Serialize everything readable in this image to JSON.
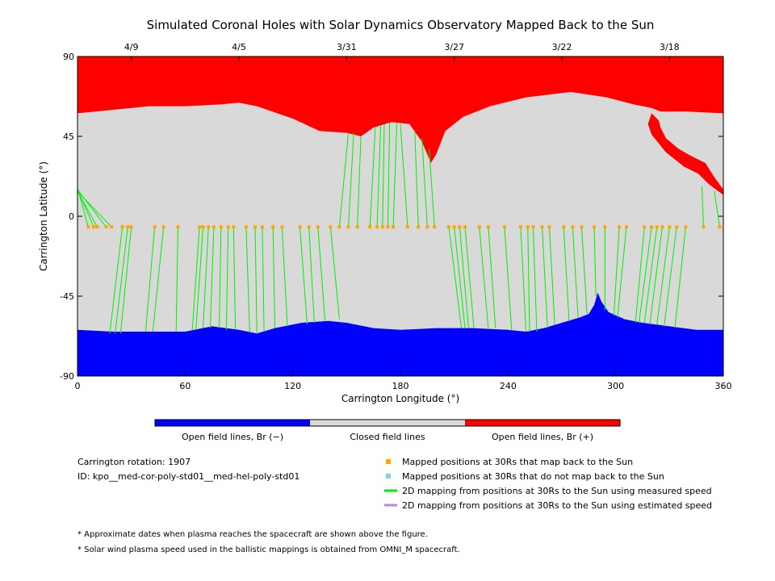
{
  "chart_data": {
    "type": "map",
    "title": "Simulated Coronal Holes with Solar Dynamics Observatory Mapped Back to the Sun",
    "xlabel": "Carrington Longitude (°)",
    "ylabel": "Carrington Latitude (°)",
    "xlim": [
      0,
      360
    ],
    "ylim": [
      -90,
      90
    ],
    "x_ticks": [
      0,
      60,
      120,
      180,
      240,
      300,
      360
    ],
    "y_ticks": [
      90,
      45,
      0,
      -45,
      -90
    ],
    "top_date_ticks": [
      {
        "label": "4/9",
        "lon": 30
      },
      {
        "label": "4/5",
        "lon": 90
      },
      {
        "label": "3/31",
        "lon": 150
      },
      {
        "label": "3/27",
        "lon": 210
      },
      {
        "label": "3/22",
        "lon": 270
      },
      {
        "label": "3/18",
        "lon": 330
      }
    ],
    "colors": {
      "open_negative": "#0000ff",
      "closed": "#d9d9d9",
      "open_positive": "#ff0000",
      "mapped_point": "#ffa500",
      "unmapped_point": "#87ceeb",
      "measured_line": "#00ee00",
      "estimated_line": "#b68be8"
    },
    "north_boundary": [
      [
        0,
        58
      ],
      [
        20,
        60
      ],
      [
        40,
        62
      ],
      [
        60,
        62
      ],
      [
        80,
        63
      ],
      [
        90,
        64
      ],
      [
        100,
        62
      ],
      [
        120,
        55
      ],
      [
        135,
        48
      ],
      [
        150,
        47
      ],
      [
        158,
        45
      ],
      [
        165,
        50
      ],
      [
        175,
        53
      ],
      [
        185,
        52
      ],
      [
        192,
        42
      ],
      [
        197,
        30
      ],
      [
        200,
        35
      ],
      [
        205,
        48
      ],
      [
        215,
        56
      ],
      [
        230,
        62
      ],
      [
        250,
        67
      ],
      [
        275,
        70
      ],
      [
        295,
        67
      ],
      [
        310,
        63
      ],
      [
        320,
        61
      ],
      [
        325,
        59
      ],
      [
        340,
        59
      ],
      [
        360,
        58
      ]
    ],
    "north_red_lobe": [
      [
        320,
        58
      ],
      [
        324,
        54
      ],
      [
        325,
        50
      ],
      [
        328,
        44
      ],
      [
        335,
        38
      ],
      [
        342,
        34
      ],
      [
        350,
        30
      ],
      [
        355,
        22
      ],
      [
        360,
        15
      ],
      [
        360,
        12
      ],
      [
        352,
        18
      ],
      [
        346,
        24
      ],
      [
        338,
        28
      ],
      [
        328,
        36
      ],
      [
        320,
        46
      ],
      [
        318,
        52
      ]
    ],
    "south_boundary": [
      [
        0,
        -64
      ],
      [
        20,
        -65
      ],
      [
        40,
        -65
      ],
      [
        60,
        -65
      ],
      [
        75,
        -62
      ],
      [
        90,
        -64
      ],
      [
        100,
        -66
      ],
      [
        110,
        -63
      ],
      [
        125,
        -60
      ],
      [
        140,
        -59
      ],
      [
        150,
        -60
      ],
      [
        165,
        -63
      ],
      [
        180,
        -64
      ],
      [
        200,
        -63
      ],
      [
        220,
        -63
      ],
      [
        240,
        -64
      ],
      [
        250,
        -65
      ],
      [
        260,
        -63
      ],
      [
        270,
        -60
      ],
      [
        280,
        -57
      ],
      [
        285,
        -55
      ],
      [
        288,
        -50
      ],
      [
        290,
        -43
      ],
      [
        292,
        -48
      ],
      [
        296,
        -54
      ],
      [
        305,
        -58
      ],
      [
        315,
        -60
      ],
      [
        330,
        -62
      ],
      [
        345,
        -64
      ],
      [
        360,
        -64
      ]
    ],
    "mapped_points": [
      {
        "lon": 6,
        "lat": -6,
        "sun_lon": 0,
        "sun_lat": 16
      },
      {
        "lon": 9,
        "lat": -6,
        "sun_lon": 0,
        "sun_lat": 15
      },
      {
        "lon": 11,
        "lat": -6,
        "sun_lon": 0,
        "sun_lat": 14
      },
      {
        "lon": 16,
        "lat": -6,
        "sun_lon": 0,
        "sun_lat": 15
      },
      {
        "lon": 19,
        "lat": -6,
        "sun_lon": 0,
        "sun_lat": 14
      },
      {
        "lon": 25,
        "lat": -6,
        "sun_lon": 18,
        "sun_lat": -66
      },
      {
        "lon": 28,
        "lat": -6,
        "sun_lon": 21,
        "sun_lat": -66
      },
      {
        "lon": 30,
        "lat": -6,
        "sun_lon": 24,
        "sun_lat": -66
      },
      {
        "lon": 43,
        "lat": -6,
        "sun_lon": 38,
        "sun_lat": -65
      },
      {
        "lon": 48,
        "lat": -6,
        "sun_lon": 42,
        "sun_lat": -65
      },
      {
        "lon": 56,
        "lat": -6,
        "sun_lon": 55,
        "sun_lat": -65
      },
      {
        "lon": 68,
        "lat": -6,
        "sun_lon": 64,
        "sun_lat": -64
      },
      {
        "lon": 70,
        "lat": -6,
        "sun_lon": 66,
        "sun_lat": -64
      },
      {
        "lon": 73,
        "lat": -6,
        "sun_lon": 70,
        "sun_lat": -63
      },
      {
        "lon": 76,
        "lat": -6,
        "sun_lon": 74,
        "sun_lat": -63
      },
      {
        "lon": 80,
        "lat": -6,
        "sun_lon": 79,
        "sun_lat": -63
      },
      {
        "lon": 84,
        "lat": -6,
        "sun_lon": 83,
        "sun_lat": -64
      },
      {
        "lon": 87,
        "lat": -6,
        "sun_lon": 88,
        "sun_lat": -64
      },
      {
        "lon": 94,
        "lat": -6,
        "sun_lon": 96,
        "sun_lat": -65
      },
      {
        "lon": 99,
        "lat": -6,
        "sun_lon": 100,
        "sun_lat": -66
      },
      {
        "lon": 103,
        "lat": -6,
        "sun_lon": 104,
        "sun_lat": -65
      },
      {
        "lon": 109,
        "lat": -6,
        "sun_lon": 110,
        "sun_lat": -63
      },
      {
        "lon": 114,
        "lat": -6,
        "sun_lon": 117,
        "sun_lat": -62
      },
      {
        "lon": 124,
        "lat": -6,
        "sun_lon": 128,
        "sun_lat": -61
      },
      {
        "lon": 129,
        "lat": -6,
        "sun_lon": 132,
        "sun_lat": -60
      },
      {
        "lon": 134,
        "lat": -6,
        "sun_lon": 138,
        "sun_lat": -59
      },
      {
        "lon": 141,
        "lat": -6,
        "sun_lon": 146,
        "sun_lat": -58
      },
      {
        "lon": 146,
        "lat": -6,
        "sun_lon": 151,
        "sun_lat": 47
      },
      {
        "lon": 151,
        "lat": -6,
        "sun_lon": 154,
        "sun_lat": 47
      },
      {
        "lon": 156,
        "lat": -6,
        "sun_lon": 158,
        "sun_lat": 45
      },
      {
        "lon": 163,
        "lat": -6,
        "sun_lon": 166,
        "sun_lat": 50
      },
      {
        "lon": 167,
        "lat": -6,
        "sun_lon": 169,
        "sun_lat": 51
      },
      {
        "lon": 170,
        "lat": -6,
        "sun_lon": 171,
        "sun_lat": 52
      },
      {
        "lon": 173,
        "lat": -6,
        "sun_lon": 174,
        "sun_lat": 53
      },
      {
        "lon": 176,
        "lat": -6,
        "sun_lon": 178,
        "sun_lat": 53
      },
      {
        "lon": 184,
        "lat": -6,
        "sun_lon": 180,
        "sun_lat": 52
      },
      {
        "lon": 190,
        "lat": -6,
        "sun_lon": 188,
        "sun_lat": 48
      },
      {
        "lon": 195,
        "lat": -6,
        "sun_lon": 192,
        "sun_lat": 44
      },
      {
        "lon": 199,
        "lat": -6,
        "sun_lon": 196,
        "sun_lat": 38
      },
      {
        "lon": 207,
        "lat": -6,
        "sun_lon": 214,
        "sun_lat": -63
      },
      {
        "lon": 210,
        "lat": -6,
        "sun_lon": 216,
        "sun_lat": -63
      },
      {
        "lon": 213,
        "lat": -6,
        "sun_lon": 218,
        "sun_lat": -63
      },
      {
        "lon": 216,
        "lat": -6,
        "sun_lon": 221,
        "sun_lat": -63
      },
      {
        "lon": 224,
        "lat": -6,
        "sun_lon": 229,
        "sun_lat": -63
      },
      {
        "lon": 229,
        "lat": -6,
        "sun_lon": 233,
        "sun_lat": -63
      },
      {
        "lon": 238,
        "lat": -6,
        "sun_lon": 242,
        "sun_lat": -64
      },
      {
        "lon": 247,
        "lat": -6,
        "sun_lon": 250,
        "sun_lat": -65
      },
      {
        "lon": 251,
        "lat": -6,
        "sun_lon": 252,
        "sun_lat": -65
      },
      {
        "lon": 254,
        "lat": -6,
        "sun_lon": 256,
        "sun_lat": -65
      },
      {
        "lon": 259,
        "lat": -6,
        "sun_lon": 262,
        "sun_lat": -63
      },
      {
        "lon": 263,
        "lat": -6,
        "sun_lon": 266,
        "sun_lat": -61
      },
      {
        "lon": 271,
        "lat": -6,
        "sun_lon": 274,
        "sun_lat": -59
      },
      {
        "lon": 276,
        "lat": -6,
        "sun_lon": 279,
        "sun_lat": -57
      },
      {
        "lon": 281,
        "lat": -6,
        "sun_lon": 284,
        "sun_lat": -55
      },
      {
        "lon": 288,
        "lat": -6,
        "sun_lon": 289,
        "sun_lat": -45
      },
      {
        "lon": 294,
        "lat": -6,
        "sun_lon": 294,
        "sun_lat": -53
      },
      {
        "lon": 302,
        "lat": -6,
        "sun_lon": 299,
        "sun_lat": -56
      },
      {
        "lon": 306,
        "lat": -6,
        "sun_lon": 301,
        "sun_lat": -57
      },
      {
        "lon": 316,
        "lat": -6,
        "sun_lon": 311,
        "sun_lat": -60
      },
      {
        "lon": 320,
        "lat": -6,
        "sun_lon": 313,
        "sun_lat": -60
      },
      {
        "lon": 323,
        "lat": -6,
        "sun_lon": 316,
        "sun_lat": -60
      },
      {
        "lon": 326,
        "lat": -6,
        "sun_lon": 319,
        "sun_lat": -61
      },
      {
        "lon": 330,
        "lat": -6,
        "sun_lon": 323,
        "sun_lat": -61
      },
      {
        "lon": 334,
        "lat": -6,
        "sun_lon": 327,
        "sun_lat": -62
      },
      {
        "lon": 339,
        "lat": -6,
        "sun_lon": 333,
        "sun_lat": -63
      },
      {
        "lon": 349,
        "lat": -6,
        "sun_lon": 348,
        "sun_lat": 17
      },
      {
        "lon": 358,
        "lat": -6,
        "sun_lon": 355,
        "sun_lat": 14
      }
    ]
  },
  "colorbar_labels": [
    "Open field lines, Br (−)",
    "Closed field lines",
    "Open field lines, Br (+)"
  ],
  "info": {
    "carrington_rotation": "Carrington rotation: 1907",
    "model_id": "ID: kpo__med-cor-poly-std01__med-hel-poly-std01"
  },
  "legend": [
    "Mapped positions at 30Rs that map back to the Sun",
    "Mapped positions at 30Rs that do not map back to the Sun",
    "2D mapping from positions at 30Rs to the Sun using measured speed",
    "2D mapping from positions at 30Rs to the Sun using estimated speed"
  ],
  "notes": [
    "* Approximate dates when plasma reaches the spacecraft are shown above the figure.",
    "* Solar wind plasma speed used in the ballistic mappings is obtained from OMNI_M spacecraft."
  ]
}
